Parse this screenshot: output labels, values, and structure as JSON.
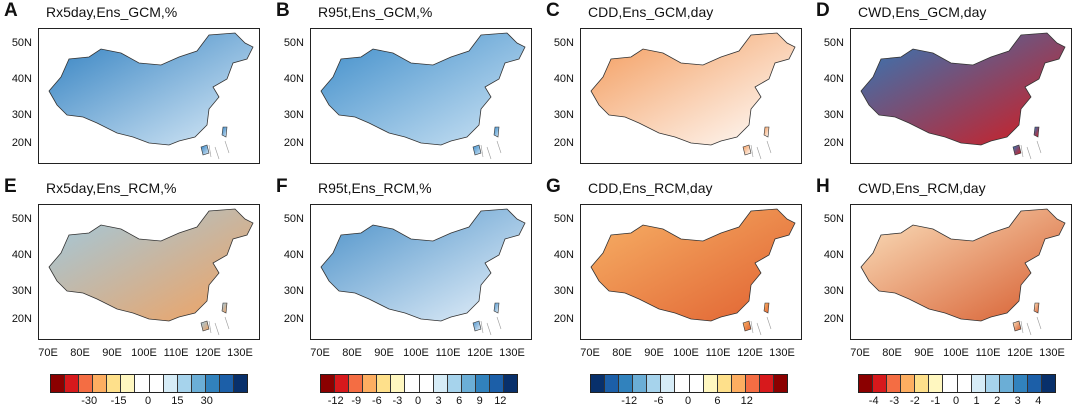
{
  "panels": [
    {
      "label": "A",
      "title": "Rx5day,Ens_GCM,%"
    },
    {
      "label": "B",
      "title": "R95t,Ens_GCM,%"
    },
    {
      "label": "C",
      "title": "CDD,Ens_GCM,day"
    },
    {
      "label": "D",
      "title": "CWD,Ens_GCM,day"
    },
    {
      "label": "E",
      "title": "Rx5day,Ens_RCM,%"
    },
    {
      "label": "F",
      "title": "R95t,Ens_RCM,%"
    },
    {
      "label": "G",
      "title": "CDD,Ens_RCM,day"
    },
    {
      "label": "H",
      "title": "CWD,Ens_RCM,day"
    }
  ],
  "y_ticks": [
    "50N",
    "40N",
    "30N",
    "20N"
  ],
  "x_ticks": [
    "70E",
    "80E",
    "90E",
    "100E",
    "110E",
    "120E",
    "130E"
  ],
  "colorbars": [
    {
      "name": "rx5day",
      "labels": [
        "-30",
        "-15",
        "0",
        "15",
        "30"
      ]
    },
    {
      "name": "r95t",
      "labels": [
        "-12",
        "-9",
        "-6",
        "-3",
        "0",
        "3",
        "6",
        "9",
        "12"
      ]
    },
    {
      "name": "cdd",
      "labels": [
        "-12",
        "-6",
        "0",
        "6",
        "12"
      ]
    },
    {
      "name": "cwd",
      "labels": [
        "-4",
        "-3",
        "-2",
        "-1",
        "0",
        "1",
        "2",
        "3",
        "4"
      ]
    }
  ],
  "colors": {
    "diverging": [
      "#8b0000",
      "#d7191c",
      "#f46d43",
      "#fdae61",
      "#fee08b",
      "#fff7c0",
      "#ffffff",
      "#ffffff",
      "#d6ecf7",
      "#a6d3ec",
      "#6baed6",
      "#3182bd",
      "#1c5fa8",
      "#08306b"
    ]
  }
}
